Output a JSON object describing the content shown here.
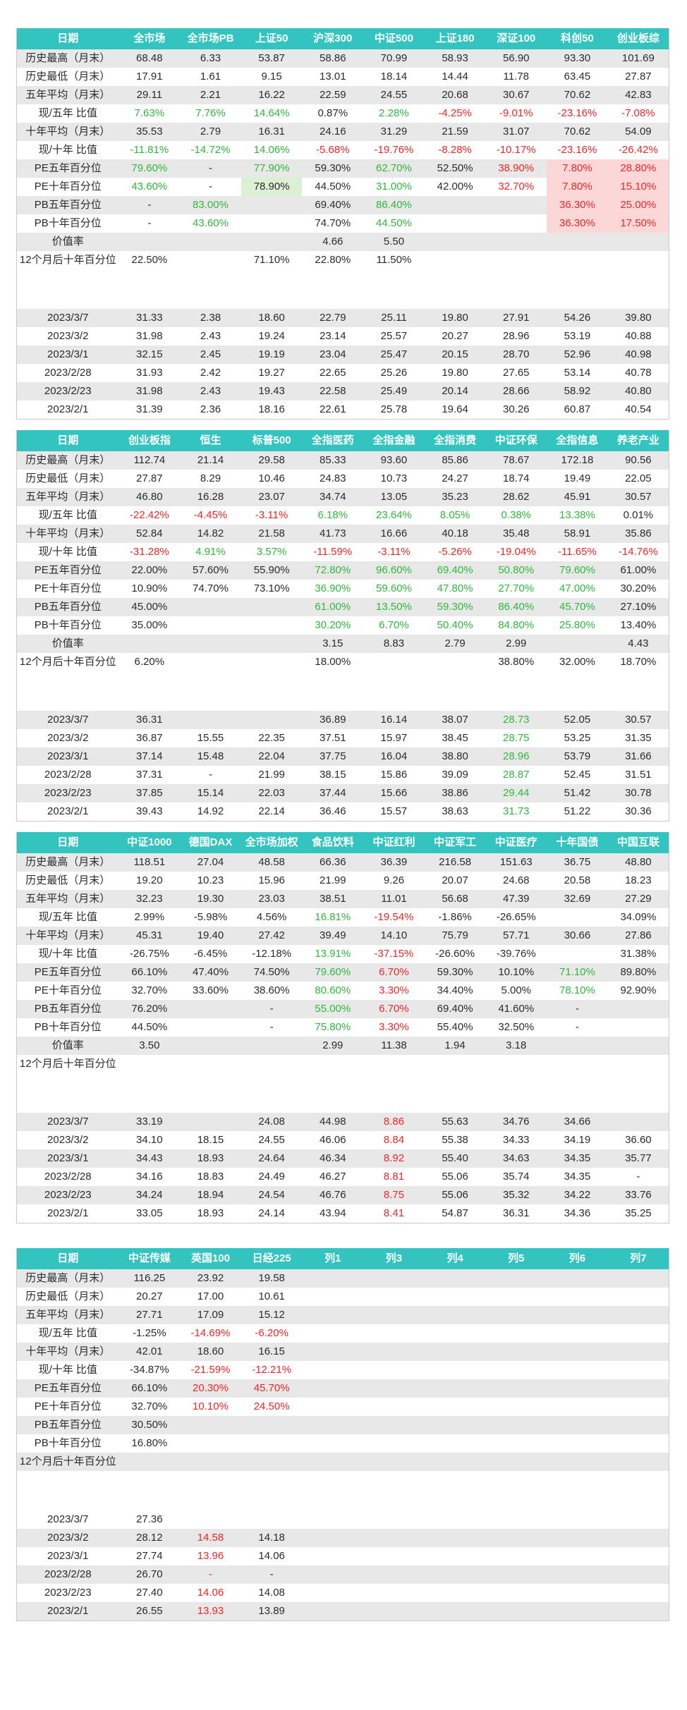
{
  "tables": [
    {
      "headers": [
        "日期",
        "全市场",
        "全市场PB",
        "上证50",
        "沪深300",
        "中证500",
        "上证180",
        "深证100",
        "科创50",
        "创业板综"
      ],
      "rows": [
        [
          "历史最高（月末）",
          "68.48",
          "6.33",
          "53.87",
          "58.86",
          "70.99",
          "58.93",
          "56.90",
          "93.30",
          "101.69"
        ],
        [
          "历史最低（月末）",
          "17.91",
          "1.61",
          "9.15",
          "13.01",
          "18.14",
          "14.44",
          "11.78",
          "63.45",
          "27.87"
        ],
        [
          "五年平均（月末）",
          "29.11",
          "2.21",
          "16.22",
          "22.59",
          "24.55",
          "20.68",
          "30.67",
          "70.62",
          "42.83"
        ],
        [
          "现/五年 比值",
          "7.63%",
          "7.76%",
          "14.64%",
          "0.87%",
          "2.28%",
          "-4.25%",
          "-9.01%",
          "-23.16%",
          "-7.08%"
        ],
        [
          "十年平均（月末）",
          "35.53",
          "2.79",
          "16.31",
          "24.16",
          "31.29",
          "21.59",
          "31.07",
          "70.62",
          "54.09"
        ],
        [
          "现/十年 比值",
          "-11.81%",
          "-14.72%",
          "14.06%",
          "-5.68%",
          "-19.76%",
          "-8.28%",
          "-10.17%",
          "-23.16%",
          "-26.42%"
        ],
        [
          "PE五年百分位",
          "79.60%",
          "-",
          "77.90%",
          "59.30%",
          "62.70%",
          "52.50%",
          "38.90%",
          "7.80%",
          "28.80%"
        ],
        [
          "PE十年百分位",
          "43.60%",
          "-",
          "78.90%",
          "44.50%",
          "31.00%",
          "42.00%",
          "32.70%",
          "7.80%",
          "15.10%"
        ],
        [
          "PB五年百分位",
          "-",
          "83.00%",
          "",
          "69.40%",
          "86.40%",
          "",
          "",
          "36.30%",
          "25.00%"
        ],
        [
          "PB十年百分位",
          "-",
          "43.60%",
          "",
          "74.70%",
          "44.50%",
          "",
          "",
          "36.30%",
          "17.50%"
        ],
        [
          "价值率",
          "",
          "",
          "",
          "4.66",
          "5.50",
          "",
          "",
          "",
          ""
        ],
        [
          "12个月后十年百分位",
          "22.50%",
          "",
          "71.10%",
          "22.80%",
          "11.50%",
          "",
          "",
          "",
          ""
        ]
      ],
      "dates": [
        [
          "2023/3/7",
          "31.33",
          "2.38",
          "18.60",
          "22.79",
          "25.11",
          "19.80",
          "27.91",
          "54.26",
          "39.80"
        ],
        [
          "2023/3/2",
          "31.98",
          "2.43",
          "19.24",
          "23.14",
          "25.57",
          "20.27",
          "28.96",
          "53.19",
          "40.88"
        ],
        [
          "2023/3/1",
          "32.15",
          "2.45",
          "19.19",
          "23.04",
          "25.47",
          "20.15",
          "28.70",
          "52.96",
          "40.98"
        ],
        [
          "2023/2/28",
          "31.93",
          "2.42",
          "19.27",
          "22.65",
          "25.26",
          "19.80",
          "27.65",
          "53.14",
          "40.78"
        ],
        [
          "2023/2/23",
          "31.98",
          "2.43",
          "19.43",
          "22.58",
          "25.49",
          "20.14",
          "28.66",
          "58.92",
          "40.80"
        ],
        [
          "2023/2/1",
          "31.39",
          "2.36",
          "18.16",
          "22.61",
          "25.78",
          "19.64",
          "30.26",
          "60.87",
          "40.54"
        ]
      ]
    },
    {
      "headers": [
        "日期",
        "创业板指",
        "恒生",
        "标普500",
        "全指医药",
        "全指金融",
        "全指消费",
        "中证环保",
        "全指信息",
        "养老产业"
      ],
      "rows": [
        [
          "历史最高（月末）",
          "112.74",
          "21.14",
          "29.58",
          "85.33",
          "93.60",
          "85.86",
          "78.67",
          "172.18",
          "90.56"
        ],
        [
          "历史最低（月末）",
          "27.87",
          "8.29",
          "10.46",
          "24.83",
          "10.73",
          "24.27",
          "18.74",
          "19.49",
          "22.05"
        ],
        [
          "五年平均（月末）",
          "46.80",
          "16.28",
          "23.07",
          "34.74",
          "13.05",
          "35.23",
          "28.62",
          "45.91",
          "30.57"
        ],
        [
          "现/五年 比值",
          "-22.42%",
          "-4.45%",
          "-3.11%",
          "6.18%",
          "23.64%",
          "8.05%",
          "0.38%",
          "13.38%",
          "0.01%"
        ],
        [
          "十年平均（月末）",
          "52.84",
          "14.82",
          "21.58",
          "41.73",
          "16.66",
          "40.18",
          "35.48",
          "58.91",
          "35.86"
        ],
        [
          "现/十年 比值",
          "-31.28%",
          "4.91%",
          "3.57%",
          "-11.59%",
          "-3.11%",
          "-5.26%",
          "-19.04%",
          "-11.65%",
          "-14.76%"
        ],
        [
          "PE五年百分位",
          "22.00%",
          "57.60%",
          "55.90%",
          "72.80%",
          "96.60%",
          "69.40%",
          "50.80%",
          "79.60%",
          "61.00%"
        ],
        [
          "PE十年百分位",
          "10.90%",
          "74.70%",
          "73.10%",
          "36.90%",
          "59.60%",
          "47.80%",
          "27.70%",
          "47.00%",
          "30.20%"
        ],
        [
          "PB五年百分位",
          "45.00%",
          "",
          "",
          "61.00%",
          "13.50%",
          "59.30%",
          "86.40%",
          "45.70%",
          "27.10%"
        ],
        [
          "PB十年百分位",
          "35.00%",
          "",
          "",
          "30.20%",
          "6.70%",
          "50.40%",
          "84.80%",
          "25.80%",
          "13.40%"
        ],
        [
          "价值率",
          "",
          "",
          "",
          "3.15",
          "8.83",
          "2.79",
          "2.99",
          "",
          "4.43"
        ],
        [
          "12个月后十年百分位",
          "6.20%",
          "",
          "",
          "18.00%",
          "",
          "",
          "38.80%",
          "32.00%",
          "18.70%"
        ]
      ],
      "dates": [
        [
          "2023/3/7",
          "36.31",
          "",
          "",
          "36.89",
          "16.14",
          "38.07",
          "28.73",
          "52.05",
          "30.57"
        ],
        [
          "2023/3/2",
          "36.87",
          "15.55",
          "22.35",
          "37.51",
          "15.97",
          "38.45",
          "28.75",
          "53.25",
          "31.35"
        ],
        [
          "2023/3/1",
          "37.14",
          "15.48",
          "22.04",
          "37.75",
          "16.04",
          "38.80",
          "28.96",
          "53.79",
          "31.66"
        ],
        [
          "2023/2/28",
          "37.31",
          "-",
          "21.99",
          "38.15",
          "15.86",
          "39.09",
          "28.87",
          "52.45",
          "31.51"
        ],
        [
          "2023/2/23",
          "37.85",
          "15.14",
          "22.03",
          "37.44",
          "15.66",
          "38.86",
          "29.44",
          "51.42",
          "30.78"
        ],
        [
          "2023/2/1",
          "39.43",
          "14.92",
          "22.14",
          "36.46",
          "15.57",
          "38.63",
          "31.73",
          "51.22",
          "30.36"
        ]
      ]
    },
    {
      "headers": [
        "日期",
        "中证1000",
        "德国DAX",
        "全市场加权",
        "食品饮料",
        "中证红利",
        "中证军工",
        "中证医疗",
        "十年国债",
        "中国互联"
      ],
      "rows": [
        [
          "历史最高（月末）",
          "118.51",
          "27.04",
          "48.58",
          "66.36",
          "36.39",
          "216.58",
          "151.63",
          "36.75",
          "48.80"
        ],
        [
          "历史最低（月末）",
          "19.20",
          "10.23",
          "15.96",
          "21.99",
          "9.26",
          "20.07",
          "24.68",
          "20.58",
          "18.23"
        ],
        [
          "五年平均（月末）",
          "32.23",
          "19.30",
          "23.03",
          "38.51",
          "11.01",
          "56.68",
          "47.39",
          "32.69",
          "27.29"
        ],
        [
          "现/五年 比值",
          "2.99%",
          "-5.98%",
          "4.56%",
          "16.81%",
          "-19.54%",
          "-1.86%",
          "-26.65%",
          "",
          "34.09%"
        ],
        [
          "十年平均（月末）",
          "45.31",
          "19.40",
          "27.42",
          "39.49",
          "14.10",
          "75.79",
          "57.71",
          "30.66",
          "27.86"
        ],
        [
          "现/十年 比值",
          "-26.75%",
          "-6.45%",
          "-12.18%",
          "13.91%",
          "-37.15%",
          "-26.60%",
          "-39.76%",
          "",
          "31.38%"
        ],
        [
          "PE五年百分位",
          "66.10%",
          "47.40%",
          "74.50%",
          "79.60%",
          "6.70%",
          "59.30%",
          "10.10%",
          "71.10%",
          "89.80%"
        ],
        [
          "PE十年百分位",
          "32.70%",
          "33.60%",
          "38.60%",
          "80.60%",
          "3.30%",
          "34.40%",
          "5.00%",
          "78.10%",
          "92.90%"
        ],
        [
          "PB五年百分位",
          "76.20%",
          "",
          "-",
          "55.00%",
          "6.70%",
          "69.40%",
          "41.60%",
          "-",
          ""
        ],
        [
          "PB十年百分位",
          "44.50%",
          "",
          "-",
          "75.80%",
          "3.30%",
          "55.40%",
          "32.50%",
          "-",
          ""
        ],
        [
          "价值率",
          "3.50",
          "",
          "",
          "2.99",
          "11.38",
          "1.94",
          "3.18",
          "",
          ""
        ],
        [
          "12个月后十年百分位",
          "",
          "",
          "",
          "",
          "",
          "",
          "",
          "",
          ""
        ]
      ],
      "dates": [
        [
          "2023/3/7",
          "33.19",
          "",
          "24.08",
          "44.98",
          "8.86",
          "55.63",
          "34.76",
          "34.66",
          ""
        ],
        [
          "2023/3/2",
          "34.10",
          "18.15",
          "24.55",
          "46.06",
          "8.84",
          "55.38",
          "34.33",
          "34.19",
          "36.60"
        ],
        [
          "2023/3/1",
          "34.43",
          "18.93",
          "24.64",
          "46.34",
          "8.92",
          "55.40",
          "34.63",
          "34.35",
          "35.77"
        ],
        [
          "2023/2/28",
          "34.16",
          "18.83",
          "24.49",
          "46.27",
          "8.81",
          "55.06",
          "35.74",
          "34.35",
          "-"
        ],
        [
          "2023/2/23",
          "34.24",
          "18.94",
          "24.54",
          "46.76",
          "8.75",
          "55.06",
          "35.32",
          "34.22",
          "33.76"
        ],
        [
          "2023/2/1",
          "33.05",
          "18.93",
          "24.14",
          "43.94",
          "8.41",
          "54.87",
          "36.31",
          "34.36",
          "35.25"
        ]
      ]
    },
    {
      "headers": [
        "日期",
        "中证传媒",
        "英国100",
        "日经225",
        "列1",
        "列3",
        "列4",
        "列5",
        "列6",
        "列7"
      ],
      "rows": [
        [
          "历史最高（月末）",
          "116.25",
          "23.92",
          "19.58",
          "",
          "",
          "",
          "",
          "",
          ""
        ],
        [
          "历史最低（月末）",
          "20.27",
          "17.00",
          "10.61",
          "",
          "",
          "",
          "",
          "",
          ""
        ],
        [
          "五年平均（月末）",
          "27.71",
          "17.09",
          "15.12",
          "",
          "",
          "",
          "",
          "",
          ""
        ],
        [
          "现/五年 比值",
          "-1.25%",
          "-14.69%",
          "-6.20%",
          "",
          "",
          "",
          "",
          "",
          ""
        ],
        [
          "十年平均（月末）",
          "42.01",
          "18.60",
          "16.15",
          "",
          "",
          "",
          "",
          "",
          ""
        ],
        [
          "现/十年 比值",
          "-34.87%",
          "-21.59%",
          "-12.21%",
          "",
          "",
          "",
          "",
          "",
          ""
        ],
        [
          "PE五年百分位",
          "66.10%",
          "20.30%",
          "45.70%",
          "",
          "",
          "",
          "",
          "",
          ""
        ],
        [
          "PE十年百分位",
          "32.70%",
          "10.10%",
          "24.50%",
          "",
          "",
          "",
          "",
          "",
          ""
        ],
        [
          "PB五年百分位",
          "30.50%",
          "",
          "",
          "",
          "",
          "",
          "",
          "",
          ""
        ],
        [
          "PB十年百分位",
          "16.80%",
          "",
          "",
          "",
          "",
          "",
          "",
          "",
          ""
        ],
        [
          "12个月后十年百分位",
          "",
          "",
          "",
          "",
          "",
          "",
          "",
          "",
          ""
        ]
      ],
      "dates": [
        [
          "2023/3/7",
          "27.36",
          "",
          "",
          "",
          "",
          "",
          "",
          "",
          ""
        ],
        [
          "2023/3/2",
          "28.12",
          "14.58",
          "14.18",
          "",
          "",
          "",
          "",
          "",
          ""
        ],
        [
          "2023/3/1",
          "27.74",
          "13.96",
          "14.06",
          "",
          "",
          "",
          "",
          "",
          ""
        ],
        [
          "2023/2/28",
          "26.70",
          "-",
          "-",
          "",
          "",
          "",
          "",
          "",
          ""
        ],
        [
          "2023/2/23",
          "27.40",
          "14.06",
          "14.08",
          "",
          "",
          "",
          "",
          "",
          ""
        ],
        [
          "2023/2/1",
          "26.55",
          "13.93",
          "13.89",
          "",
          "",
          "",
          "",
          "",
          ""
        ]
      ]
    }
  ],
  "colors": {
    "header_bg": "#33c4c0",
    "positive": "#2fb83b",
    "negative": "#f02626",
    "pink": "#fbd7d7"
  },
  "styles": [
    {
      "rows": {
        "3": [
          "",
          "pos",
          "pos",
          "pos",
          "",
          "pos",
          "neg",
          "neg",
          "neg",
          "neg"
        ],
        "5": [
          "",
          "pos",
          "pos",
          "pos",
          "neg",
          "neg",
          "neg",
          "neg",
          "neg",
          "neg"
        ],
        "6": [
          "",
          "pos",
          "",
          "pos",
          "",
          "pos",
          "",
          "neg",
          "pink",
          "pink"
        ],
        "7": [
          "",
          "pos",
          "",
          "green-bg",
          "",
          "pos",
          "",
          "neg",
          "pink",
          "pink"
        ],
        "8": [
          "",
          "",
          "pos",
          "",
          "",
          "pos",
          "",
          "",
          "pink",
          "pink"
        ],
        "9": [
          "",
          "",
          "pos",
          "",
          "",
          "pos",
          "",
          "",
          "pink",
          "pink"
        ]
      },
      "dates": {}
    },
    {
      "rows": {
        "3": [
          "",
          "neg",
          "neg",
          "neg",
          "pos",
          "pos",
          "pos",
          "pos",
          "pos",
          ""
        ],
        "5": [
          "",
          "neg",
          "pos",
          "pos",
          "neg",
          "neg",
          "neg",
          "neg",
          "neg",
          "neg"
        ],
        "6": [
          "",
          "",
          "",
          "",
          "pos",
          "pos",
          "pos",
          "pos",
          "pos",
          ""
        ],
        "7": [
          "",
          "",
          "",
          "",
          "pos",
          "pos",
          "pos",
          "pos",
          "pos",
          ""
        ],
        "8": [
          "",
          "",
          "",
          "",
          "pos",
          "pos",
          "pos",
          "pos",
          "pos",
          ""
        ],
        "9": [
          "",
          "",
          "",
          "",
          "pos",
          "pos",
          "pos",
          "pos",
          "pos",
          ""
        ]
      },
      "dates": {
        "col": 7,
        "cls": "pos"
      }
    },
    {
      "rows": {
        "3": [
          "",
          "",
          "",
          "",
          "pos",
          "neg",
          "",
          "",
          "",
          ""
        ],
        "5": [
          "",
          "",
          "",
          "",
          "pos",
          "neg",
          "",
          "",
          "",
          ""
        ],
        "6": [
          "",
          "",
          "",
          "",
          "pos",
          "neg",
          "",
          "",
          "pos",
          ""
        ],
        "7": [
          "",
          "",
          "",
          "",
          "pos",
          "neg",
          "",
          "",
          "pos",
          ""
        ],
        "8": [
          "",
          "",
          "",
          "",
          "pos",
          "neg",
          "",
          "",
          "",
          ""
        ],
        "9": [
          "",
          "",
          "",
          "",
          "pos",
          "neg",
          "",
          "",
          "",
          ""
        ]
      },
      "dates": {
        "col": 5,
        "cls": "neg"
      }
    },
    {
      "rows": {
        "3": [
          "",
          "",
          "neg",
          "neg",
          "",
          "",
          "",
          "",
          "",
          ""
        ],
        "5": [
          "",
          "",
          "neg",
          "neg",
          "",
          "",
          "",
          "",
          "",
          ""
        ],
        "6": [
          "",
          "",
          "neg",
          "neg",
          "",
          "",
          "",
          "",
          "",
          ""
        ],
        "7": [
          "",
          "",
          "neg",
          "neg",
          "",
          "",
          "",
          "",
          "",
          ""
        ]
      },
      "dates": {
        "col": 2,
        "cls": "neg"
      }
    }
  ]
}
